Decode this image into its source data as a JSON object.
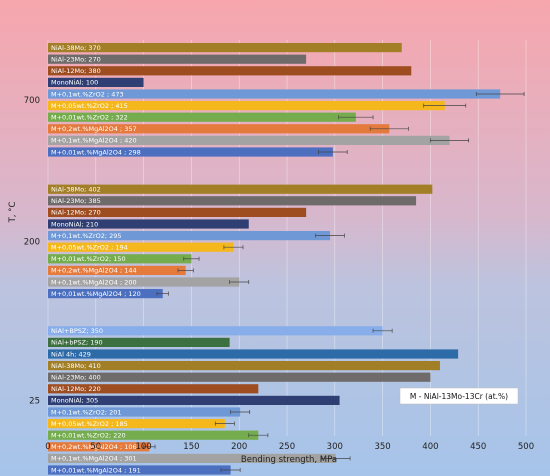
{
  "chart_data": {
    "type": "bar",
    "orientation": "horizontal",
    "xlabel": "Bending strength, MPa",
    "ylabel": "T, °C",
    "xlim": [
      0,
      500
    ],
    "xticks": [
      0,
      50,
      100,
      150,
      200,
      250,
      300,
      350,
      400,
      450,
      500
    ],
    "grid": true,
    "annotation": "M - NiAl-13Mo-13Cr (at.%)",
    "groups": [
      {
        "label": "700",
        "bars": [
          {
            "label": "NiAl-38Mo; 370",
            "value": 370,
            "color": "#a27e26"
          },
          {
            "label": "NiAl-23Mo; 270",
            "value": 270,
            "color": "#6e6b6a"
          },
          {
            "label": "NiAl-12Mo; 380",
            "value": 380,
            "color": "#9e4d21"
          },
          {
            "label": "MonoNiAl; 100",
            "value": 100,
            "color": "#2f3f73"
          },
          {
            "label": "M+0,1wt.%ZrO2 ; 473",
            "value": 473,
            "color": "#6f99d6",
            "error": 25
          },
          {
            "label": "M+0,05wt.%ZrO2 ; 415",
            "value": 415,
            "color": "#f5b81c",
            "error": 22
          },
          {
            "label": "M+0,01wt.%ZrO2 ; 322",
            "value": 322,
            "color": "#75ac4d",
            "error": 18
          },
          {
            "label": "M+0,2wt.%MgAl2O4 ; 357",
            "value": 357,
            "color": "#e57a3d",
            "error": 20
          },
          {
            "label": "M+0,1wt.%MgAl2O4 ; 420",
            "value": 420,
            "color": "#a3a3a3",
            "error": 20
          },
          {
            "label": "M+0,01wt.%MgAl2O4 ; 298",
            "value": 298,
            "color": "#4c6fc0",
            "error": 15
          }
        ]
      },
      {
        "label": "200",
        "bars": [
          {
            "label": "NiAl-38Mo; 402",
            "value": 402,
            "color": "#a27e26"
          },
          {
            "label": "NiAl-23Mo; 385",
            "value": 385,
            "color": "#6e6b6a"
          },
          {
            "label": "NiAl-12Mo; 270",
            "value": 270,
            "color": "#9e4d21"
          },
          {
            "label": "MonoNiAl; 210",
            "value": 210,
            "color": "#2f3f73"
          },
          {
            "label": "M+0,1wt.%ZrO2; 295",
            "value": 295,
            "color": "#6f99d6",
            "error": 15
          },
          {
            "label": "M+0,05wt.%ZrO2 ; 194",
            "value": 194,
            "color": "#f5b81c",
            "error": 10
          },
          {
            "label": "M+0,01wt.%ZrO2; 150",
            "value": 150,
            "color": "#75ac4d",
            "error": 8
          },
          {
            "label": "M+0,2wt.%MgAl2O4 ; 144",
            "value": 144,
            "color": "#e57a3d",
            "error": 8
          },
          {
            "label": "M+0,1wt.%MgAl2O4 ; 200",
            "value": 200,
            "color": "#a3a3a3",
            "error": 10
          },
          {
            "label": "M+0,01wt.%MgAl2O4 ; 120",
            "value": 120,
            "color": "#4c6fc0",
            "error": 6
          }
        ]
      },
      {
        "label": "25",
        "bars": [
          {
            "label": "NiAl+BPSZ; 350",
            "value": 350,
            "color": "#87aeea",
            "error": 10
          },
          {
            "label": "NiAl+bPSZ; 190",
            "value": 190,
            "color": "#3d7040"
          },
          {
            "label": "NiAl 4h; 429",
            "value": 429,
            "color": "#2d6aa8"
          },
          {
            "label": "NiAl-38Mo; 410",
            "value": 410,
            "color": "#a27e26"
          },
          {
            "label": "NiAl-23Mo; 400",
            "value": 400,
            "color": "#6e6b6a"
          },
          {
            "label": "NiAl-12Mo; 220",
            "value": 220,
            "color": "#9e4d21"
          },
          {
            "label": "MonoNiAl; 305",
            "value": 305,
            "color": "#2f3f73"
          },
          {
            "label": "M+0,1wt.%ZrO2; 201",
            "value": 201,
            "color": "#6f99d6",
            "error": 10
          },
          {
            "label": "M+0,05wt.%ZrO2 ; 185",
            "value": 185,
            "color": "#f5b81c",
            "error": 10
          },
          {
            "label": "M+0,01wt.%ZrO2; 220",
            "value": 220,
            "color": "#75ac4d",
            "error": 10
          },
          {
            "label": "M+0,2wt.%MgAl2O4 ; 106",
            "value": 106,
            "color": "#e57a3d",
            "error": 6
          },
          {
            "label": "M+0,1wt.%MgAl2O4 ; 301",
            "value": 301,
            "color": "#a3a3a3",
            "error": 15
          },
          {
            "label": "M+0,01wt.%MgAl2O4 ; 191",
            "value": 191,
            "color": "#4c6fc0",
            "error": 10
          }
        ]
      }
    ]
  }
}
